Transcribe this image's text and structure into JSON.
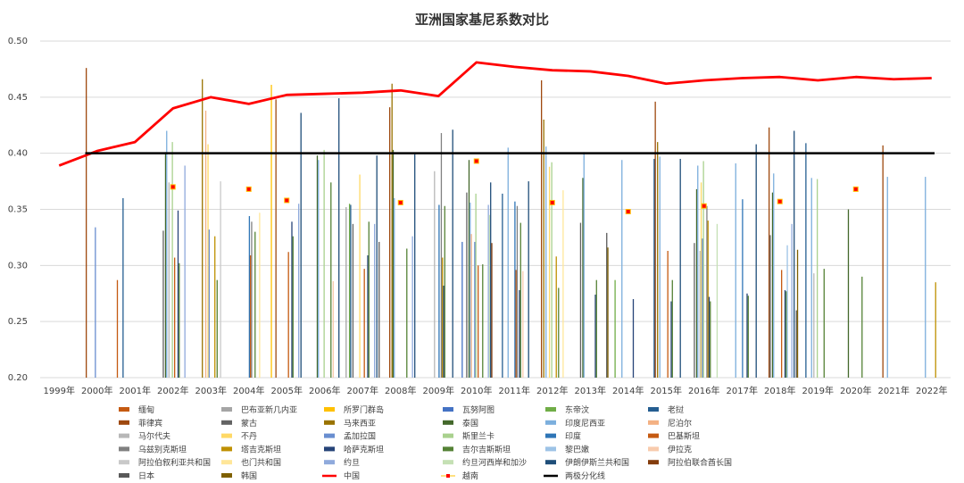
{
  "chart_data": {
    "type": "bar",
    "title": "亚洲国家基尼系数对比",
    "xlabel": "",
    "ylabel": "",
    "ylim": [
      0.2,
      0.5
    ],
    "yticks": [
      "0.20",
      "0.25",
      "0.30",
      "0.35",
      "0.40",
      "0.45",
      "0.50"
    ],
    "categories": [
      "1999年",
      "2000年",
      "2001年",
      "2002年",
      "2003年",
      "2004年",
      "2005年",
      "2006年",
      "2007年",
      "2008年",
      "2009年",
      "2010年",
      "2011年",
      "2012年",
      "2013年",
      "2014年",
      "2015年",
      "2016年",
      "2017年",
      "2018年",
      "2019年",
      "2020年",
      "2021年",
      "2022年"
    ],
    "grid": "horizontal",
    "legend_position": "bottom",
    "series": [
      {
        "name": "缅甸",
        "kind": "bar",
        "color": "#c55a11",
        "values": [
          null,
          null,
          0.287,
          null,
          null,
          null,
          null,
          null,
          null,
          null,
          null,
          null,
          null,
          null,
          null,
          null,
          null,
          null,
          null,
          null,
          null,
          null,
          null,
          null
        ]
      },
      {
        "name": "巴布亚新几内亚",
        "kind": "bar",
        "color": "#a5a5a5",
        "values": [
          null,
          null,
          null,
          null,
          null,
          null,
          null,
          null,
          0.352,
          null,
          null,
          null,
          null,
          null,
          null,
          null,
          null,
          null,
          null,
          null,
          null,
          null,
          null,
          null
        ]
      },
      {
        "name": "所罗门群岛",
        "kind": "bar",
        "color": "#ffc000",
        "values": [
          null,
          null,
          null,
          null,
          null,
          null,
          0.461,
          null,
          null,
          null,
          null,
          null,
          null,
          null,
          null,
          null,
          null,
          null,
          null,
          null,
          null,
          null,
          null,
          null
        ]
      },
      {
        "name": "瓦努阿图",
        "kind": "bar",
        "color": "#4472c4",
        "values": [
          null,
          null,
          null,
          null,
          null,
          null,
          null,
          null,
          null,
          null,
          null,
          0.321,
          null,
          null,
          null,
          null,
          null,
          null,
          null,
          null,
          null,
          null,
          null,
          null
        ]
      },
      {
        "name": "东帝汶",
        "kind": "bar",
        "color": "#70ad47",
        "values": [
          null,
          null,
          null,
          null,
          null,
          null,
          null,
          null,
          0.355,
          null,
          null,
          null,
          null,
          null,
          null,
          0.287,
          null,
          null,
          null,
          null,
          null,
          null,
          null,
          null
        ]
      },
      {
        "name": "老挝",
        "kind": "bar",
        "color": "#255e91",
        "values": [
          null,
          null,
          0.36,
          null,
          null,
          null,
          null,
          null,
          0.354,
          null,
          null,
          null,
          0.364,
          null,
          null,
          null,
          0.395,
          null,
          null,
          null,
          0.409,
          null,
          null,
          null
        ]
      },
      {
        "name": "菲律宾",
        "kind": "bar",
        "color": "#9e480e",
        "values": [
          null,
          0.476,
          null,
          null,
          null,
          null,
          0.448,
          null,
          null,
          0.441,
          null,
          null,
          null,
          0.465,
          null,
          null,
          0.446,
          null,
          null,
          0.423,
          null,
          null,
          0.407,
          null
        ]
      },
      {
        "name": "蒙古",
        "kind": "bar",
        "color": "#636363",
        "values": [
          null,
          null,
          null,
          0.331,
          null,
          null,
          null,
          null,
          0.337,
          null,
          null,
          0.365,
          null,
          null,
          0.338,
          null,
          null,
          0.32,
          null,
          0.327,
          null,
          null,
          null,
          null
        ]
      },
      {
        "name": "马来西亚",
        "kind": "bar",
        "color": "#997300",
        "values": [
          null,
          null,
          null,
          null,
          0.466,
          null,
          null,
          null,
          null,
          0.462,
          null,
          null,
          null,
          0.43,
          null,
          null,
          0.41,
          null,
          null,
          null,
          null,
          null,
          null,
          null
        ]
      },
      {
        "name": "泰国",
        "kind": "bar",
        "color": "#43682b",
        "values": [
          null,
          null,
          null,
          0.401,
          null,
          null,
          null,
          0.398,
          null,
          0.403,
          null,
          0.394,
          null,
          null,
          0.378,
          null,
          null,
          0.368,
          null,
          0.365,
          null,
          0.35,
          null,
          null
        ]
      },
      {
        "name": "印度尼西亚",
        "kind": "bar",
        "color": "#7cafdd",
        "values": [
          null,
          null,
          null,
          0.42,
          null,
          null,
          null,
          0.394,
          null,
          0.36,
          null,
          0.356,
          0.405,
          0.406,
          0.401,
          0.394,
          0.397,
          0.389,
          0.391,
          0.382,
          0.378,
          null,
          0.379,
          0.379
        ]
      },
      {
        "name": "尼泊尔",
        "kind": "bar",
        "color": "#f4b183",
        "values": [
          null,
          null,
          null,
          null,
          0.438,
          null,
          null,
          null,
          null,
          null,
          null,
          0.328,
          null,
          null,
          null,
          null,
          null,
          null,
          null,
          null,
          null,
          null,
          null,
          null
        ]
      },
      {
        "name": "马尔代夫",
        "kind": "bar",
        "color": "#b7b7b7",
        "values": [
          null,
          null,
          null,
          0.374,
          null,
          null,
          null,
          null,
          null,
          null,
          0.384,
          null,
          null,
          null,
          null,
          null,
          null,
          0.313,
          null,
          null,
          0.293,
          null,
          null,
          null
        ]
      },
      {
        "name": "不丹",
        "kind": "bar",
        "color": "#ffd966",
        "values": [
          null,
          null,
          null,
          null,
          0.408,
          null,
          null,
          null,
          0.381,
          null,
          null,
          null,
          null,
          0.388,
          null,
          null,
          null,
          0.374,
          null,
          null,
          null,
          null,
          null,
          null
        ]
      },
      {
        "name": "孟加拉国",
        "kind": "bar",
        "color": "#698ed0",
        "values": [
          null,
          0.334,
          null,
          null,
          0.332,
          null,
          null,
          null,
          null,
          null,
          null,
          0.321,
          null,
          null,
          null,
          null,
          null,
          0.324,
          null,
          null,
          null,
          null,
          null,
          null
        ]
      },
      {
        "name": "斯里兰卡",
        "kind": "bar",
        "color": "#a9d18e",
        "values": [
          null,
          null,
          null,
          0.41,
          null,
          null,
          null,
          0.403,
          null,
          null,
          null,
          0.364,
          null,
          0.392,
          null,
          null,
          null,
          0.393,
          null,
          null,
          0.377,
          null,
          null,
          null
        ]
      },
      {
        "name": "印度",
        "kind": "bar",
        "color": "#2e75b6",
        "values": [
          null,
          null,
          null,
          null,
          null,
          0.344,
          null,
          null,
          null,
          null,
          0.354,
          null,
          0.357,
          null,
          null,
          null,
          null,
          null,
          0.359,
          null,
          null,
          null,
          null,
          null
        ]
      },
      {
        "name": "巴基斯坦",
        "kind": "bar",
        "color": "#c55a11",
        "values": [
          null,
          null,
          null,
          0.307,
          null,
          0.309,
          0.312,
          null,
          0.297,
          null,
          null,
          0.3,
          0.296,
          null,
          null,
          null,
          0.313,
          null,
          null,
          0.296,
          null,
          null,
          null,
          null
        ]
      },
      {
        "name": "乌兹别克斯坦",
        "kind": "bar",
        "color": "#808080",
        "values": [
          null,
          null,
          null,
          null,
          null,
          0.339,
          null,
          null,
          null,
          null,
          0.418,
          null,
          0.353,
          null,
          null,
          null,
          null,
          0.353,
          null,
          null,
          null,
          null,
          null,
          null
        ]
      },
      {
        "name": "塔吉克斯坦",
        "kind": "bar",
        "color": "#bf9000",
        "values": [
          null,
          null,
          null,
          null,
          0.326,
          null,
          null,
          null,
          null,
          null,
          0.307,
          null,
          null,
          0.308,
          null,
          null,
          null,
          0.34,
          null,
          null,
          null,
          null,
          null,
          0.285
        ]
      },
      {
        "name": "哈萨克斯坦",
        "kind": "bar",
        "color": "#264478",
        "values": [
          null,
          null,
          null,
          0.349,
          null,
          null,
          0.339,
          null,
          0.309,
          null,
          0.282,
          null,
          0.278,
          null,
          0.274,
          0.27,
          0.268,
          0.272,
          0.275,
          0.278,
          null,
          null,
          null,
          null
        ]
      },
      {
        "name": "吉尔吉斯斯坦",
        "kind": "bar",
        "color": "#548235",
        "values": [
          null,
          null,
          null,
          0.302,
          0.287,
          0.33,
          0.326,
          0.374,
          0.339,
          0.315,
          0.353,
          0.301,
          0.338,
          0.28,
          0.287,
          null,
          0.287,
          0.268,
          0.273,
          0.277,
          0.297,
          0.29,
          null,
          null
        ]
      },
      {
        "name": "黎巴嫩",
        "kind": "bar",
        "color": "#9dc3e6",
        "values": [
          null,
          null,
          null,
          null,
          null,
          null,
          null,
          null,
          null,
          null,
          null,
          null,
          null,
          null,
          null,
          null,
          null,
          null,
          null,
          0.318,
          null,
          null,
          null,
          null
        ]
      },
      {
        "name": "伊拉克",
        "kind": "bar",
        "color": "#f8cbad",
        "values": [
          null,
          null,
          null,
          null,
          null,
          null,
          null,
          0.286,
          null,
          null,
          null,
          null,
          0.295,
          null,
          null,
          null,
          null,
          null,
          null,
          null,
          null,
          null,
          null,
          null
        ]
      },
      {
        "name": "阿拉伯叙利亚共和国",
        "kind": "bar",
        "color": "#c9c9c9",
        "values": [
          null,
          null,
          null,
          null,
          0.375,
          null,
          null,
          null,
          null,
          null,
          null,
          null,
          null,
          null,
          null,
          null,
          null,
          null,
          null,
          null,
          null,
          null,
          null,
          null
        ]
      },
      {
        "name": "也门共和国",
        "kind": "bar",
        "color": "#ffe699",
        "values": [
          null,
          null,
          null,
          null,
          null,
          0.347,
          null,
          null,
          null,
          null,
          null,
          null,
          null,
          0.367,
          null,
          null,
          null,
          null,
          null,
          null,
          null,
          null,
          null,
          null
        ]
      },
      {
        "name": "约旦",
        "kind": "bar",
        "color": "#8faadc",
        "values": [
          null,
          null,
          null,
          0.389,
          null,
          null,
          0.355,
          null,
          0.337,
          0.326,
          null,
          0.354,
          null,
          null,
          null,
          null,
          null,
          null,
          null,
          0.337,
          null,
          null,
          null,
          null
        ]
      },
      {
        "name": "约旦河西岸和加沙",
        "kind": "bar",
        "color": "#c5e0b4",
        "values": [
          null,
          null,
          null,
          null,
          null,
          null,
          null,
          null,
          null,
          null,
          null,
          0.345,
          null,
          null,
          null,
          null,
          null,
          0.337,
          null,
          null,
          null,
          null,
          null,
          null
        ]
      },
      {
        "name": "伊朗伊斯兰共和国",
        "kind": "bar",
        "color": "#1f4e79",
        "values": [
          null,
          null,
          null,
          null,
          null,
          null,
          0.436,
          0.449,
          0.398,
          0.399,
          0.421,
          0.374,
          0.375,
          null,
          null,
          null,
          0.395,
          null,
          0.408,
          0.42,
          null,
          null,
          null,
          null
        ]
      },
      {
        "name": "阿拉伯联合酋长国",
        "kind": "bar",
        "color": "#843c0c",
        "values": [
          null,
          null,
          null,
          null,
          null,
          null,
          null,
          null,
          null,
          null,
          null,
          0.32,
          null,
          null,
          null,
          null,
          null,
          null,
          null,
          null,
          null,
          null,
          null,
          null
        ]
      },
      {
        "name": "日本",
        "kind": "bar",
        "color": "#595959",
        "values": [
          null,
          null,
          null,
          null,
          null,
          null,
          null,
          null,
          0.321,
          null,
          null,
          null,
          null,
          null,
          0.329,
          null,
          null,
          null,
          null,
          0.26,
          null,
          null,
          null,
          null
        ]
      },
      {
        "name": "韩国",
        "kind": "bar",
        "color": "#7f6000",
        "values": [
          null,
          null,
          null,
          null,
          null,
          null,
          null,
          null,
          null,
          null,
          null,
          null,
          null,
          null,
          0.316,
          null,
          null,
          null,
          null,
          0.314,
          null,
          null,
          null,
          null
        ]
      },
      {
        "name": "中国",
        "kind": "line",
        "color": "#ff0000",
        "values": [
          0.389,
          0.402,
          0.41,
          0.44,
          0.45,
          0.444,
          0.452,
          0.453,
          0.454,
          0.456,
          0.451,
          0.481,
          0.477,
          0.474,
          0.473,
          0.469,
          0.462,
          0.465,
          0.467,
          0.468,
          0.465,
          0.468,
          0.466,
          0.467
        ]
      },
      {
        "name": "越南",
        "kind": "marker",
        "color": "#ff0000",
        "values": [
          null,
          null,
          null,
          0.37,
          null,
          0.368,
          0.358,
          null,
          null,
          0.356,
          null,
          0.393,
          null,
          0.356,
          null,
          0.348,
          null,
          0.353,
          null,
          0.357,
          null,
          0.368,
          null,
          null
        ]
      },
      {
        "name": "两极分化线",
        "kind": "hline",
        "color": "#000000",
        "values": [
          null,
          0.4,
          0.4,
          0.4,
          0.4,
          0.4,
          0.4,
          0.4,
          0.4,
          0.4,
          0.4,
          0.4,
          0.4,
          0.4,
          0.4,
          0.4,
          0.4,
          0.4,
          0.4,
          0.4,
          0.4,
          0.4,
          0.4,
          0.4
        ]
      }
    ]
  }
}
